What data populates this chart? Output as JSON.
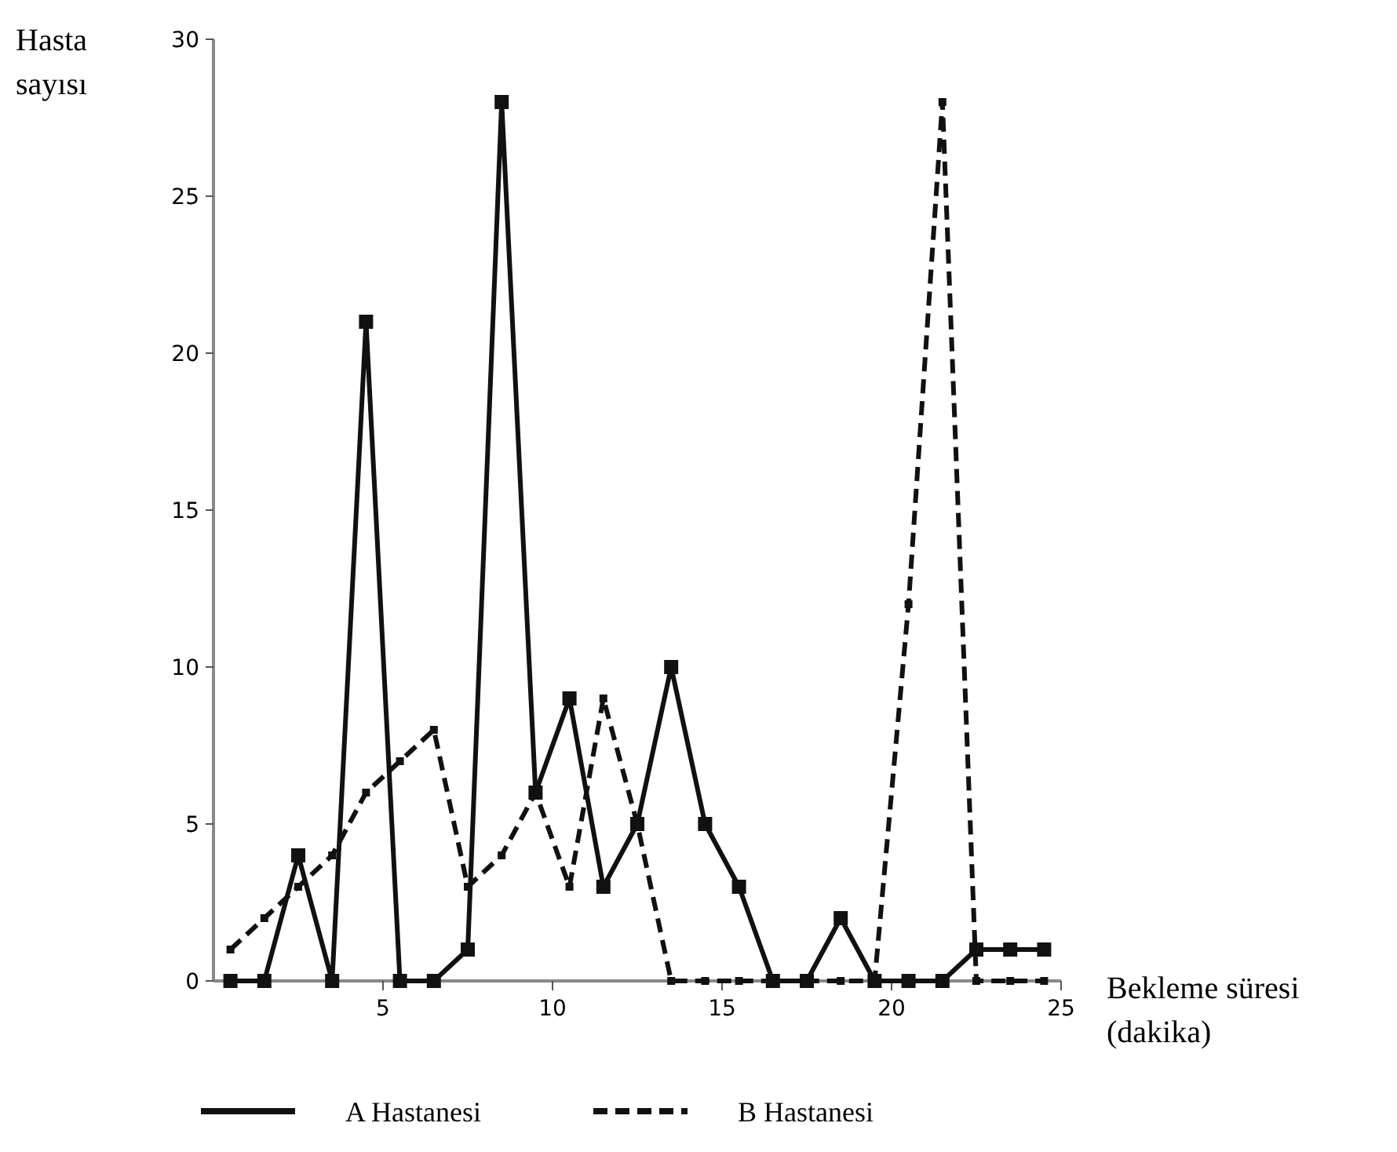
{
  "chart_data": {
    "type": "line",
    "xlabel": "Bekleme süresi (dakika)",
    "ylabel": "Hasta sayısı",
    "x": [
      0.5,
      1.5,
      2.5,
      3.5,
      4.5,
      5.5,
      6.5,
      7.5,
      8.5,
      9.5,
      10.5,
      11.5,
      12.5,
      13.5,
      14.5,
      15.5,
      16.5,
      17.5,
      18.5,
      19.5,
      20.5,
      21.5,
      22.5,
      23.5,
      24.5
    ],
    "series": [
      {
        "name": "A Hastanesi",
        "color": "#111111",
        "line_style": "solid",
        "values": [
          0,
          0,
          4,
          0,
          21,
          0,
          0,
          1,
          28,
          6,
          9,
          3,
          5,
          10,
          5,
          3,
          0,
          0,
          2,
          0,
          0,
          0,
          1,
          1,
          1
        ]
      },
      {
        "name": "B Hastanesi",
        "color": "#111111",
        "line_style": "dashed",
        "values": [
          1,
          2,
          3,
          4,
          6,
          7,
          8,
          3,
          4,
          6,
          3,
          9,
          5,
          0,
          0,
          0,
          0,
          0,
          0,
          0,
          12,
          28,
          0,
          0,
          0
        ]
      }
    ],
    "xlim": [
      0,
      25
    ],
    "xticks": [
      5,
      10,
      15,
      20,
      25
    ],
    "ylim": [
      0,
      30
    ],
    "yticks": [
      0,
      5,
      10,
      15,
      20,
      25,
      30
    ],
    "marker": "square",
    "grid": false,
    "legend": "bottom"
  }
}
